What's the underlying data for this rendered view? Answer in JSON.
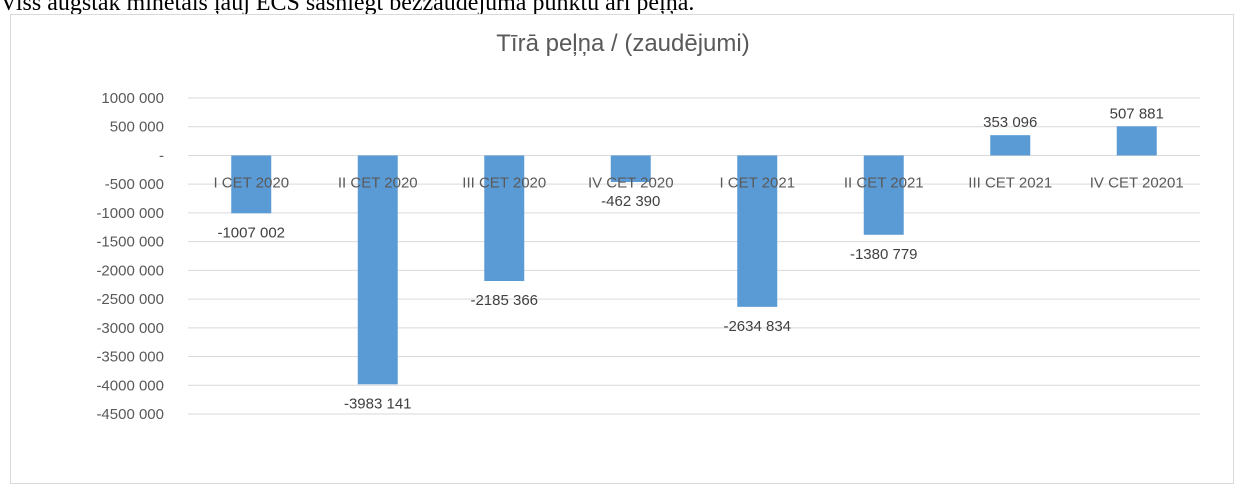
{
  "page": {
    "top_text": "Viss augstāk minētais ļauj ECS sasniegt bezzaudējuma punktu arī peļņā."
  },
  "chart_data": {
    "type": "bar",
    "title": "Tīrā peļņa / (zaudējumi)",
    "xlabel": "",
    "ylabel": "",
    "categories": [
      "I CET 2020",
      "II CET 2020",
      "III CET 2020",
      "IV CET 2020",
      "I CET 2021",
      "II CET 2021",
      "III CET 2021",
      "IV CET 20201"
    ],
    "values": [
      -1007002,
      -3983141,
      -2185366,
      -462390,
      -2634834,
      -1380779,
      353096,
      507881
    ],
    "data_labels": [
      "-1007 002",
      "-3983 141",
      "-2185 366",
      "-462 390",
      "-2634 834",
      "-1380 779",
      "353 096",
      "507 881"
    ],
    "ylim": [
      -4500000,
      1000000
    ],
    "y_ticks": [
      1000000,
      500000,
      0,
      -500000,
      -1000000,
      -1500000,
      -2000000,
      -2500000,
      -3000000,
      -3500000,
      -4000000,
      -4500000
    ],
    "y_tick_labels": [
      "1000 000",
      "500 000",
      "-",
      "-500 000",
      "-1000 000",
      "-1500 000",
      "-2000 000",
      "-2500 000",
      "-3000 000",
      "-3500 000",
      "-4000 000",
      "-4500 000"
    ],
    "grid": true,
    "bar_color": "#5b9bd5",
    "grid_color": "#d9d9d9"
  }
}
